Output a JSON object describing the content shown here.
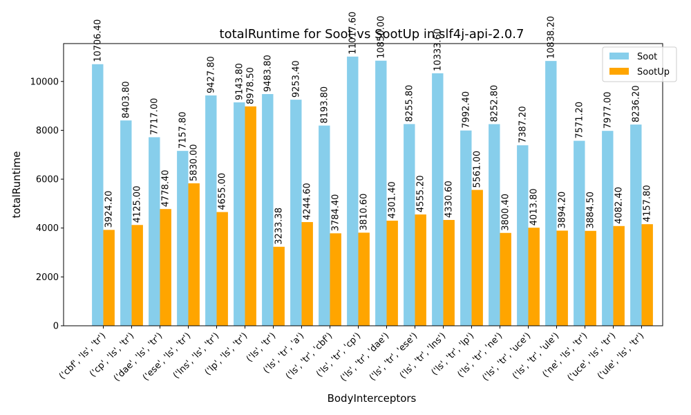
{
  "chart_data": {
    "type": "bar",
    "title": "totalRuntime for Soot vs SootUp in slf4j-api-2.0.7",
    "xlabel": "BodyInterceptors",
    "ylabel": "totalRuntime",
    "ylim": [
      0,
      11550
    ],
    "yticks": [
      0,
      2000,
      4000,
      6000,
      8000,
      10000
    ],
    "grid": false,
    "legend_position": "top-right",
    "categories": [
      "('cbf', 'ls', 'tr')",
      "('cp', 'ls', 'tr')",
      "('dae', 'ls', 'tr')",
      "('ese', 'ls', 'tr')",
      "('lns', 'ls', 'tr')",
      "('lp', 'ls', 'tr')",
      "('ls', 'tr')",
      "('ls', 'tr', 'a')",
      "('ls', 'tr', 'cbf')",
      "('ls', 'tr', 'cp')",
      "('ls', 'tr', 'dae')",
      "('ls', 'tr', 'ese')",
      "('ls', 'tr', 'lns')",
      "('ls', 'tr', 'lp')",
      "('ls', 'tr', 'ne')",
      "('ls', 'tr', 'uce')",
      "('ls', 'tr', 'ule')",
      "('ne', 'ls', 'tr')",
      "('uce', 'ls', 'tr')",
      "('ule', 'ls', 'tr')"
    ],
    "series": [
      {
        "name": "Soot",
        "color": "#87ceeb",
        "values": [
          10706.4,
          8403.8,
          7717.0,
          7157.8,
          9427.8,
          9143.8,
          9483.8,
          9253.4,
          8193.8,
          11017.6,
          10850.0,
          8255.8,
          10333.6,
          7992.4,
          8252.8,
          7387.2,
          10838.2,
          7571.2,
          7977.0,
          8236.2
        ],
        "labels": [
          "10706.40",
          "8403.80",
          "7717.00",
          "7157.80",
          "9427.80",
          "9143.80",
          "9483.80",
          "9253.40",
          "8193.80",
          "11017.60",
          "10850.00",
          "8255.80",
          "10333.60",
          "7992.40",
          "8252.80",
          "7387.20",
          "10838.20",
          "7571.20",
          "7977.00",
          "8236.20"
        ]
      },
      {
        "name": "SootUp",
        "color": "#ffa500",
        "values": [
          3924.2,
          4125.0,
          4778.4,
          5830.0,
          4655.0,
          8978.5,
          3233.38,
          4244.6,
          3784.4,
          3810.6,
          4301.4,
          4555.2,
          4330.6,
          5561.0,
          3800.4,
          4013.8,
          3894.2,
          3884.5,
          4082.4,
          4157.8
        ],
        "labels": [
          "3924.20",
          "4125.00",
          "4778.40",
          "5830.00",
          "4655.00",
          "8978.50",
          "3233.38",
          "4244.60",
          "3784.40",
          "3810.60",
          "4301.40",
          "4555.20",
          "4330.60",
          "5561.00",
          "3800.40",
          "4013.80",
          "3894.20",
          "3884.50",
          "4082.40",
          "4157.80"
        ]
      }
    ]
  }
}
